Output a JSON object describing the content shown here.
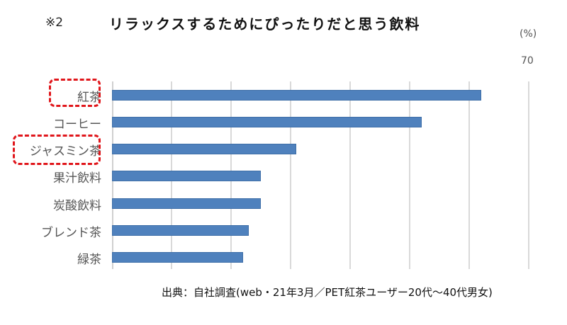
{
  "header": {
    "note": "※2",
    "title": "リラックスするためにぴったりだと思う飲料",
    "unit": "(%)",
    "max_tick": "70"
  },
  "footer": {
    "source": "出典：自社調査(web・21年3月／PET紅茶ユーザー20代〜40代男女)"
  },
  "colors": {
    "bar": "#4f81bd",
    "highlight": "#e0161b",
    "grid": "#d9d9d9"
  },
  "chart_data": {
    "type": "bar",
    "orientation": "horizontal",
    "title": "リラックスするためにぴったりだと思う飲料",
    "xlabel": "",
    "ylabel": "",
    "unit": "%",
    "xlim": [
      0,
      70
    ],
    "grid": true,
    "gridline_step": 10,
    "categories": [
      "紅茶",
      "コーヒー",
      "ジャスミン茶",
      "果汁飲料",
      "炭酸飲料",
      "ブレンド茶",
      "緑茶"
    ],
    "values": [
      62,
      52,
      31,
      25,
      25,
      23,
      22
    ],
    "highlighted": [
      "紅茶",
      "ジャスミン茶"
    ],
    "tick_labels_shown": [
      "70"
    ],
    "annotation": "※2",
    "source": "出典：自社調査(web・21年3月／PET紅茶ユーザー20代〜40代男女)"
  }
}
